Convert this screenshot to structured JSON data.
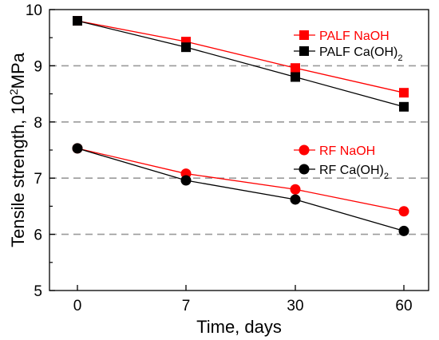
{
  "chart_data": {
    "type": "line",
    "xlabel": "Time, days",
    "ylabel_parts": {
      "prefix": "Tensile strength, 10",
      "sup": "2",
      "suffix": "MPa"
    },
    "categories": [
      "0",
      "7",
      "30",
      "60"
    ],
    "ylim": [
      5,
      10
    ],
    "yticks": [
      5,
      6,
      7,
      8,
      9,
      10
    ],
    "ytick_labels": [
      "5",
      "6",
      "7",
      "8",
      "9",
      "10"
    ],
    "grid": {
      "dashed_y": [
        6,
        7,
        8,
        9
      ]
    },
    "series": [
      {
        "name": "PALF NaOH",
        "name_main": "PALF NaOH",
        "name_sub": "",
        "marker": "square",
        "color": "#ff0000",
        "values": [
          9.8,
          9.43,
          8.96,
          8.52
        ]
      },
      {
        "name": "PALF Ca(OH)2",
        "name_main": "PALF Ca(OH)",
        "name_sub": "2",
        "marker": "square",
        "color": "#000000",
        "values": [
          9.8,
          9.33,
          8.8,
          8.27
        ]
      },
      {
        "name": "RF NaOH",
        "name_main": "RF NaOH",
        "name_sub": "",
        "marker": "circle",
        "color": "#ff0000",
        "values": [
          7.53,
          7.08,
          6.8,
          6.41
        ]
      },
      {
        "name": "RF Ca(OH)2",
        "name_main": "RF Ca(OH)",
        "name_sub": "2",
        "marker": "circle",
        "color": "#000000",
        "values": [
          7.53,
          6.96,
          6.62,
          6.06
        ]
      }
    ]
  }
}
